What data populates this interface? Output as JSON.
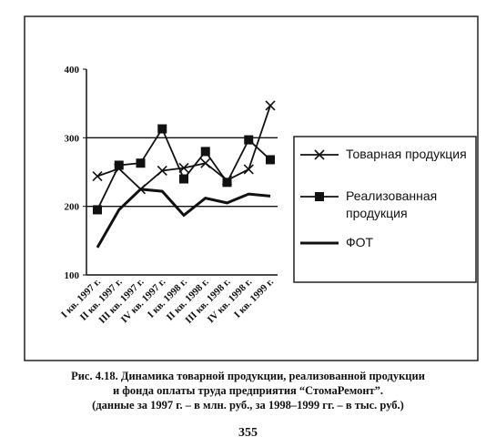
{
  "chart_data": {
    "type": "line",
    "categories": [
      "I кв. 1997 г.",
      "II кв. 1997 г.",
      "III кв. 1997 г.",
      "IV кв. 1997 г.",
      "I кв. 1998 г.",
      "II кв. 1998 г.",
      "III кв. 1998 г.",
      "IV кв. 1998 г.",
      "I кв. 1999 г."
    ],
    "series": [
      {
        "name": "Товарная продукция",
        "color": "#111111",
        "marker": "x",
        "values": [
          244,
          255,
          225,
          252,
          256,
          263,
          238,
          254,
          347
        ]
      },
      {
        "name": "Реализованная продукция",
        "color": "#111111",
        "marker": "square",
        "values": [
          195,
          260,
          263,
          313,
          240,
          280,
          235,
          297,
          268
        ]
      },
      {
        "name": "ФОТ",
        "color": "#111111",
        "marker": "none",
        "values": [
          140,
          195,
          225,
          222,
          187,
          212,
          205,
          218,
          215
        ]
      }
    ],
    "ylim": [
      100,
      400
    ],
    "yticks": [
      100,
      200,
      300,
      400
    ],
    "grid": true,
    "caption": [
      "Рис. 4.18. Динамика товарной продукции, реализованной продукции",
      "и фонда оплаты труда предприятия “СтомаРемонт”.",
      "(данные за 1997 г. – в млн. руб., за 1998–1999 гг. – в тыс. руб.)"
    ]
  },
  "page_number": "355"
}
